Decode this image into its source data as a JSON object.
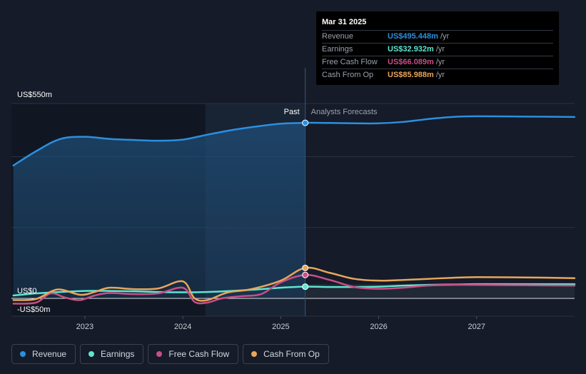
{
  "colors": {
    "revenue": "#2b8fe0",
    "earnings": "#5ee6cf",
    "free_cash_flow": "#c94e86",
    "cash_from_op": "#e9a65a",
    "background": "#151b28",
    "grid": "#2a3240"
  },
  "tooltip": {
    "date": "Mar 31 2025",
    "rows": [
      {
        "label": "Revenue",
        "value": "US$495.448m",
        "unit": "/yr",
        "color": "#2b8fe0"
      },
      {
        "label": "Earnings",
        "value": "US$32.932m",
        "unit": "/yr",
        "color": "#5ee6cf"
      },
      {
        "label": "Free Cash Flow",
        "value": "US$66.089m",
        "unit": "/yr",
        "color": "#c94e86"
      },
      {
        "label": "Cash From Op",
        "value": "US$85.988m",
        "unit": "/yr",
        "color": "#e9a65a"
      }
    ]
  },
  "legend": [
    {
      "label": "Revenue",
      "color": "#2b8fe0"
    },
    {
      "label": "Earnings",
      "color": "#5ee6cf"
    },
    {
      "label": "Free Cash Flow",
      "color": "#c94e86"
    },
    {
      "label": "Cash From Op",
      "color": "#e9a65a"
    }
  ],
  "chart_data": {
    "type": "line",
    "y_label_top": "US$550m",
    "y_label_zero": "US$0",
    "y_label_bottom": "-US$50m",
    "ylim": [
      -50,
      550
    ],
    "xlim": [
      2022.25,
      2028.0
    ],
    "x_ticks": [
      2023,
      2024,
      2025,
      2026,
      2027
    ],
    "x_tick_labels": [
      "2023",
      "2024",
      "2025",
      "2026",
      "2027"
    ],
    "past_label": "Past",
    "forecast_label": "Analysts Forecasts",
    "divider_x": 2025.25,
    "grid": true,
    "series": [
      {
        "name": "Revenue",
        "color": "#2b8fe0",
        "points": [
          [
            2022.27,
            375
          ],
          [
            2022.5,
            415
          ],
          [
            2022.75,
            450
          ],
          [
            2023.0,
            456
          ],
          [
            2023.25,
            450
          ],
          [
            2023.5,
            447
          ],
          [
            2023.75,
            445
          ],
          [
            2024.0,
            448
          ],
          [
            2024.25,
            462
          ],
          [
            2024.5,
            475
          ],
          [
            2024.75,
            485
          ],
          [
            2025.0,
            493
          ],
          [
            2025.25,
            495.4
          ],
          [
            2025.5,
            495
          ],
          [
            2025.75,
            494
          ],
          [
            2026.0,
            494
          ],
          [
            2026.25,
            498
          ],
          [
            2026.5,
            506
          ],
          [
            2026.75,
            512
          ],
          [
            2027.0,
            514
          ],
          [
            2027.5,
            513
          ],
          [
            2028.0,
            512
          ]
        ]
      },
      {
        "name": "Earnings",
        "color": "#5ee6cf",
        "points": [
          [
            2022.27,
            8
          ],
          [
            2022.5,
            14
          ],
          [
            2022.75,
            18
          ],
          [
            2023.0,
            21
          ],
          [
            2023.25,
            21
          ],
          [
            2023.5,
            20
          ],
          [
            2023.75,
            18
          ],
          [
            2024.0,
            17
          ],
          [
            2024.25,
            18
          ],
          [
            2024.5,
            21
          ],
          [
            2024.75,
            25
          ],
          [
            2025.0,
            30
          ],
          [
            2025.25,
            32.9
          ],
          [
            2025.5,
            32
          ],
          [
            2025.75,
            32
          ],
          [
            2026.0,
            33
          ],
          [
            2026.25,
            36
          ],
          [
            2026.5,
            38
          ],
          [
            2026.75,
            39
          ],
          [
            2027.0,
            40
          ],
          [
            2027.5,
            40
          ],
          [
            2028.0,
            40
          ]
        ]
      },
      {
        "name": "Free Cash Flow",
        "color": "#c94e86",
        "points": [
          [
            2022.27,
            -15
          ],
          [
            2022.5,
            -12
          ],
          [
            2022.65,
            14
          ],
          [
            2022.8,
            2
          ],
          [
            2022.95,
            -5
          ],
          [
            2023.1,
            8
          ],
          [
            2023.25,
            15
          ],
          [
            2023.5,
            12
          ],
          [
            2023.75,
            14
          ],
          [
            2024.0,
            30
          ],
          [
            2024.12,
            -10
          ],
          [
            2024.25,
            -12
          ],
          [
            2024.4,
            0
          ],
          [
            2024.6,
            6
          ],
          [
            2024.8,
            12
          ],
          [
            2025.0,
            45
          ],
          [
            2025.25,
            66.1
          ],
          [
            2025.5,
            52
          ],
          [
            2025.75,
            32
          ],
          [
            2026.0,
            27
          ],
          [
            2026.25,
            30
          ],
          [
            2026.5,
            36
          ],
          [
            2026.75,
            38
          ],
          [
            2027.0,
            38
          ],
          [
            2027.5,
            37
          ],
          [
            2028.0,
            36
          ]
        ]
      },
      {
        "name": "Cash From Op",
        "color": "#e9a65a",
        "points": [
          [
            2022.27,
            -5
          ],
          [
            2022.5,
            -2
          ],
          [
            2022.72,
            25
          ],
          [
            2022.95,
            10
          ],
          [
            2023.1,
            18
          ],
          [
            2023.25,
            30
          ],
          [
            2023.5,
            26
          ],
          [
            2023.75,
            28
          ],
          [
            2024.0,
            48
          ],
          [
            2024.12,
            0
          ],
          [
            2024.25,
            -5
          ],
          [
            2024.45,
            16
          ],
          [
            2024.7,
            26
          ],
          [
            2025.0,
            50
          ],
          [
            2025.25,
            86.0
          ],
          [
            2025.5,
            72
          ],
          [
            2025.75,
            55
          ],
          [
            2026.0,
            50
          ],
          [
            2026.25,
            52
          ],
          [
            2026.5,
            55
          ],
          [
            2026.75,
            58
          ],
          [
            2027.0,
            60
          ],
          [
            2027.5,
            59
          ],
          [
            2028.0,
            57
          ]
        ]
      }
    ]
  }
}
